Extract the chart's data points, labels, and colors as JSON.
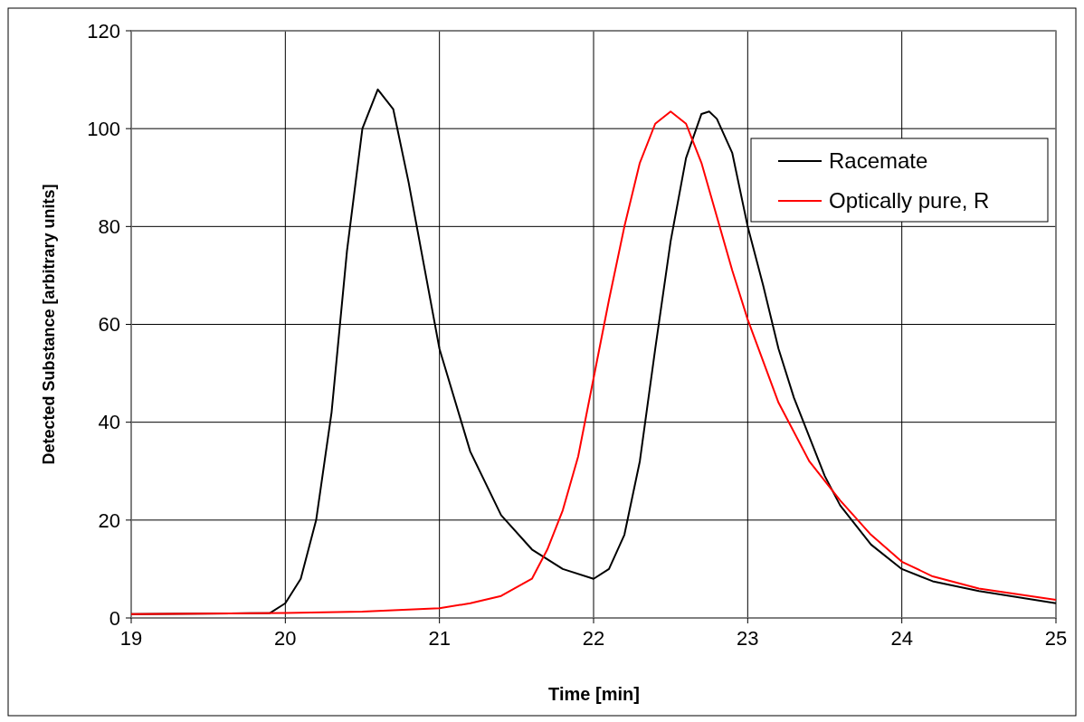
{
  "chart_data": {
    "type": "line",
    "xlabel": "Time [min]",
    "ylabel": "Detected Substance [arbitrary units]",
    "xlim": [
      19,
      25
    ],
    "xticks": [
      19,
      20,
      21,
      22,
      23,
      24,
      25
    ],
    "ylim": [
      0,
      120
    ],
    "yticks": [
      0,
      20,
      40,
      60,
      80,
      100,
      120
    ],
    "grid": true,
    "legend": "top right",
    "marker": "none",
    "line_style": "solid",
    "series": [
      {
        "name": "Racemate",
        "color": "#000000",
        "x": [
          19,
          19.9,
          20,
          20.1,
          20.2,
          20.3,
          20.4,
          20.5,
          20.6,
          20.7,
          20.8,
          20.9,
          21,
          21.2,
          21.4,
          21.6,
          21.8,
          22,
          22.1,
          22.2,
          22.3,
          22.4,
          22.5,
          22.6,
          22.7,
          22.75,
          22.8,
          22.9,
          23,
          23.1,
          23.2,
          23.3,
          23.4,
          23.5,
          23.6,
          23.8,
          24,
          24.2,
          24.5,
          25
        ],
        "values": [
          0.8,
          1,
          3,
          8,
          20,
          42,
          75,
          100,
          108,
          104,
          89,
          72,
          55,
          34,
          21,
          14,
          10,
          8,
          10,
          17,
          32,
          55,
          77,
          94,
          103,
          103.5,
          102,
          95,
          80,
          68,
          55,
          45,
          37,
          29,
          23,
          15,
          10,
          7.5,
          5.5,
          3
        ]
      },
      {
        "name": "Optically pure, R",
        "color": "#ff0000",
        "x": [
          19,
          20,
          20.5,
          21,
          21.2,
          21.4,
          21.6,
          21.7,
          21.8,
          21.9,
          22,
          22.1,
          22.2,
          22.3,
          22.4,
          22.5,
          22.6,
          22.7,
          22.8,
          22.9,
          23,
          23.2,
          23.4,
          23.6,
          23.8,
          24,
          24.2,
          24.5,
          25
        ],
        "values": [
          0.8,
          1,
          1.3,
          2,
          3,
          4.5,
          8,
          14,
          22,
          33,
          49,
          65,
          80,
          93,
          101,
          103.5,
          101,
          93,
          82,
          71,
          61,
          44,
          32,
          24,
          17,
          11.5,
          8.5,
          6,
          3.7
        ]
      }
    ]
  }
}
